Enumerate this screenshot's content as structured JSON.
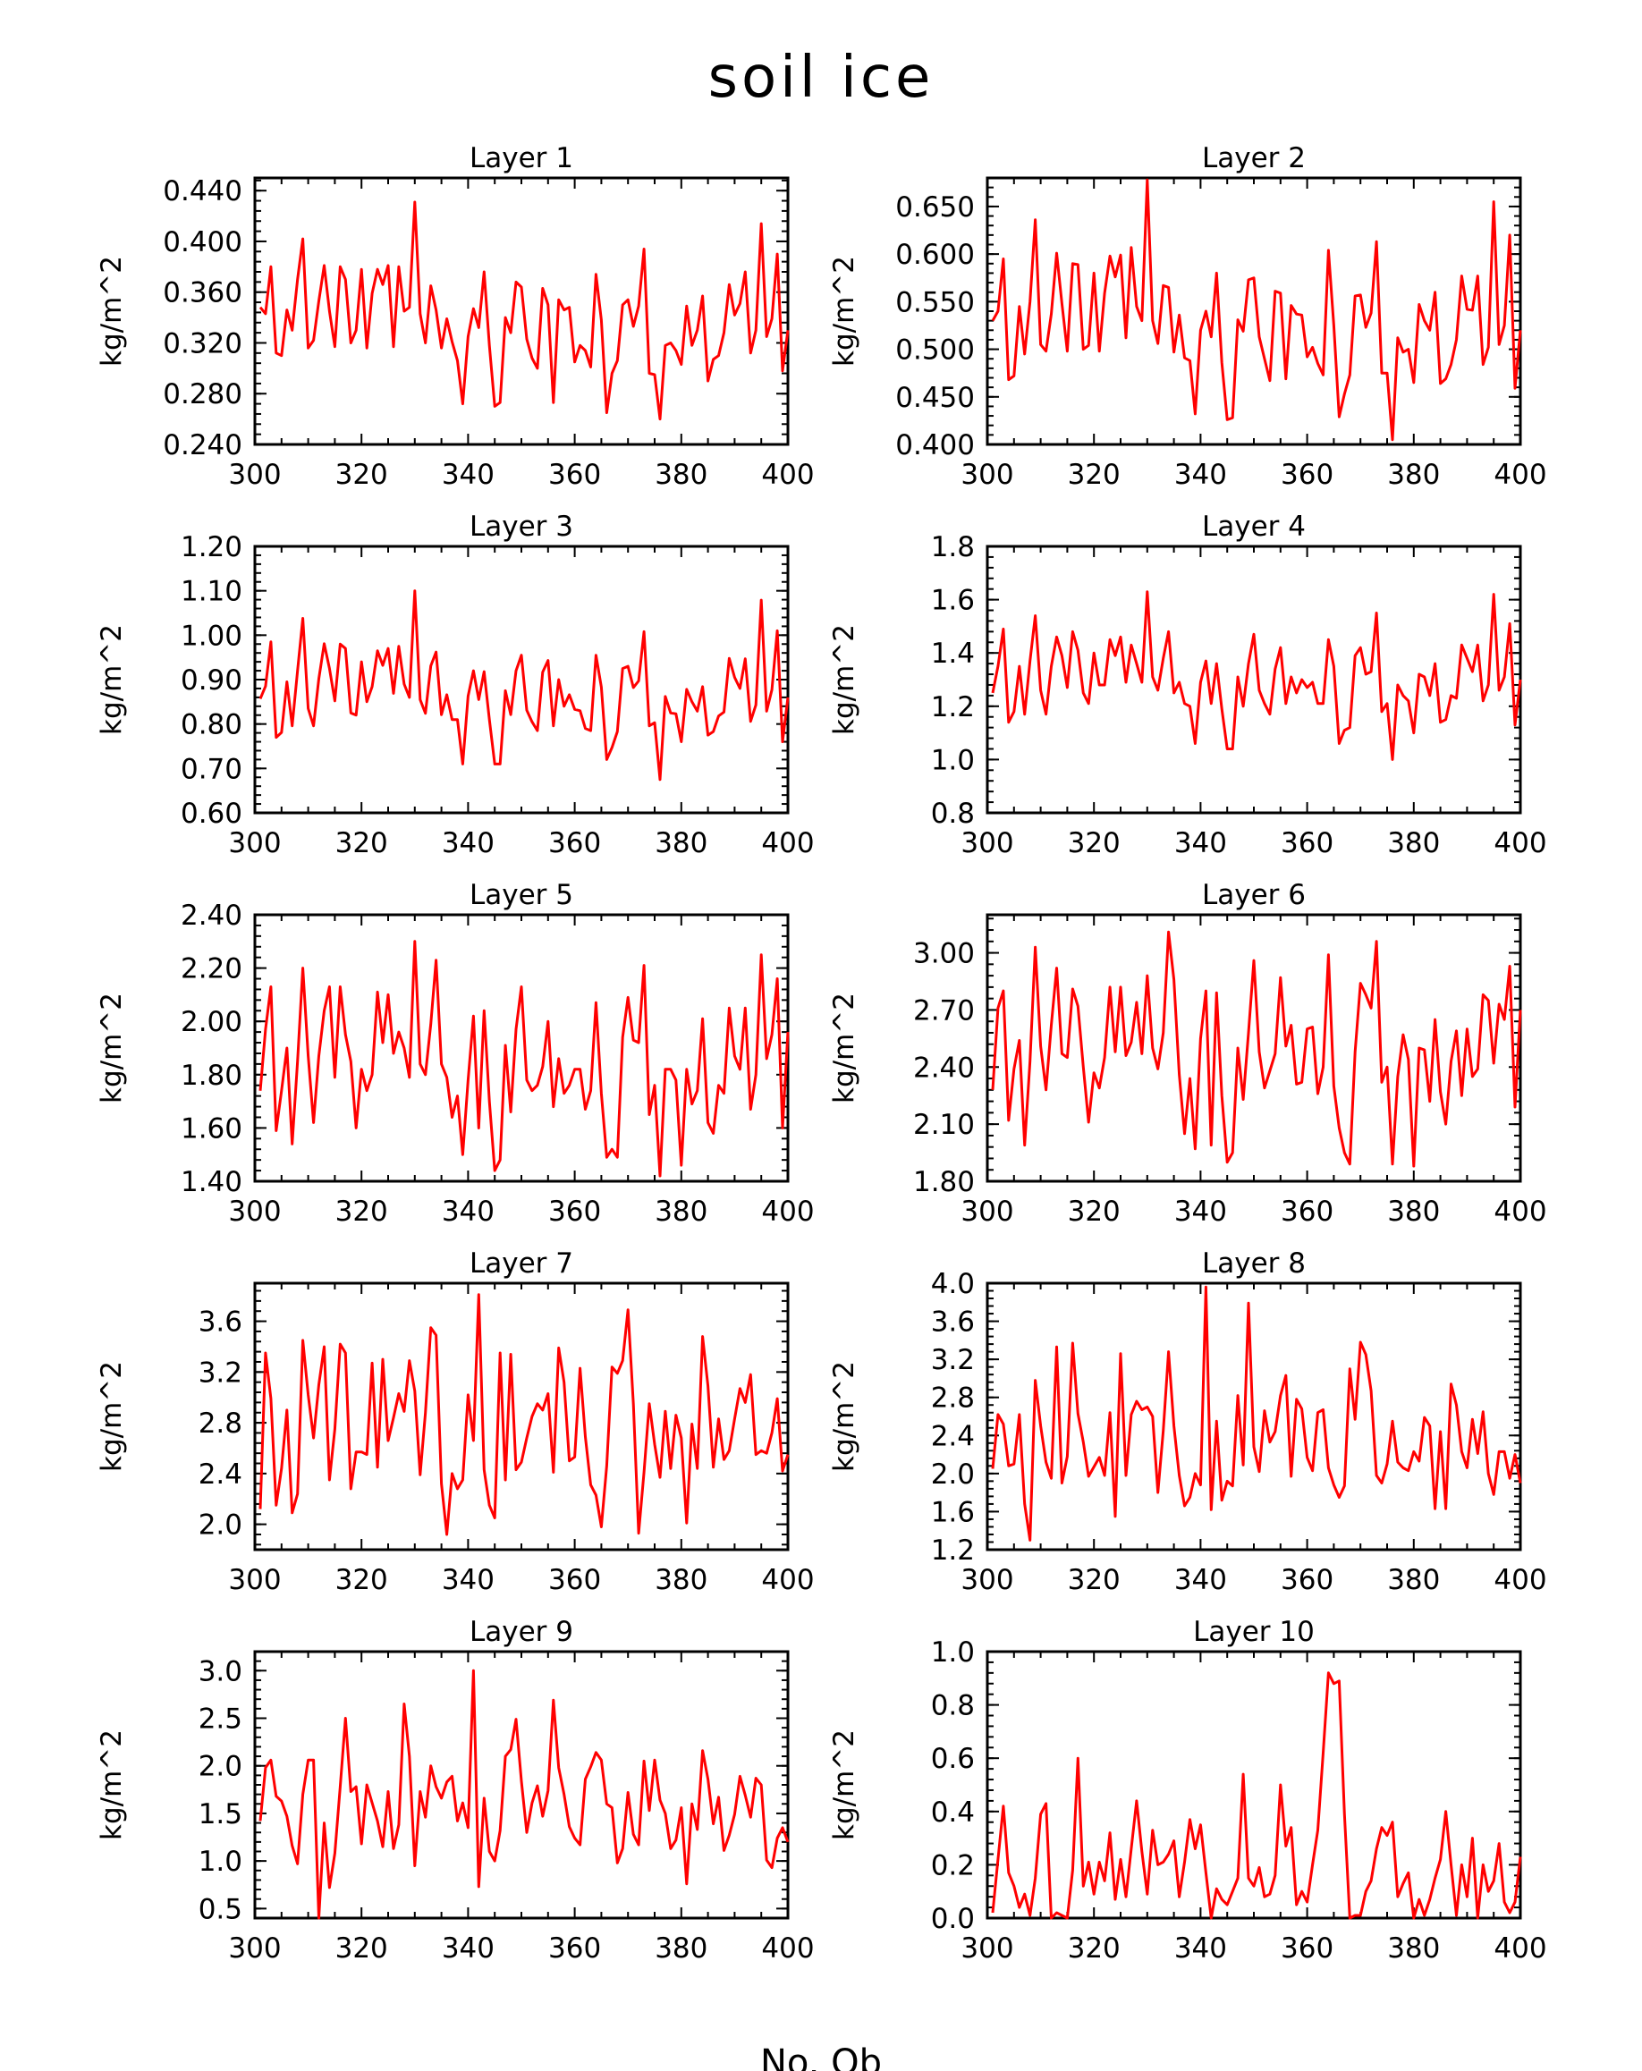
{
  "title": "soil ice",
  "xlabel": "No. Ob",
  "chart_data": [
    {
      "type": "line",
      "title": "Layer 1",
      "ylabel": "kg/m^2",
      "xlim": [
        300,
        400
      ],
      "ylim": [
        0.24,
        0.45
      ],
      "xticks": [
        "300",
        "320",
        "340",
        "360",
        "380",
        "400"
      ],
      "yticks": [
        "0.240",
        "0.280",
        "0.320",
        "0.360",
        "0.400",
        "0.440"
      ],
      "x_start": 301,
      "color": "#ff0000",
      "values": [
        0.348,
        0.343,
        0.38,
        0.312,
        0.31,
        0.346,
        0.33,
        0.37,
        0.402,
        0.316,
        0.322,
        0.353,
        0.381,
        0.345,
        0.317,
        0.38,
        0.37,
        0.32,
        0.33,
        0.378,
        0.316,
        0.359,
        0.378,
        0.366,
        0.381,
        0.317,
        0.38,
        0.345,
        0.348,
        0.431,
        0.343,
        0.32,
        0.365,
        0.346,
        0.316,
        0.339,
        0.321,
        0.306,
        0.272,
        0.325,
        0.347,
        0.332,
        0.376,
        0.318,
        0.27,
        0.273,
        0.34,
        0.328,
        0.368,
        0.364,
        0.323,
        0.308,
        0.3,
        0.363,
        0.35,
        0.273,
        0.354,
        0.346,
        0.348,
        0.305,
        0.318,
        0.314,
        0.301,
        0.374,
        0.338,
        0.265,
        0.296,
        0.306,
        0.35,
        0.354,
        0.333,
        0.349,
        0.394,
        0.296,
        0.295,
        0.26,
        0.318,
        0.32,
        0.314,
        0.303,
        0.349,
        0.318,
        0.33,
        0.357,
        0.29,
        0.307,
        0.31,
        0.328,
        0.366,
        0.342,
        0.351,
        0.376,
        0.312,
        0.33,
        0.414,
        0.325,
        0.339,
        0.39,
        0.298,
        0.33
      ]
    },
    {
      "type": "line",
      "title": "Layer 2",
      "ylabel": "kg/m^2",
      "xlim": [
        300,
        400
      ],
      "ylim": [
        0.4,
        0.68
      ],
      "xticks": [
        "300",
        "320",
        "340",
        "360",
        "380",
        "400"
      ],
      "yticks": [
        "0.400",
        "0.450",
        "0.500",
        "0.550",
        "0.600",
        "0.650"
      ],
      "x_start": 301,
      "color": "#ff0000",
      "values": [
        0.53,
        0.54,
        0.595,
        0.468,
        0.472,
        0.545,
        0.495,
        0.55,
        0.636,
        0.505,
        0.498,
        0.537,
        0.601,
        0.548,
        0.498,
        0.59,
        0.589,
        0.5,
        0.504,
        0.58,
        0.498,
        0.559,
        0.598,
        0.576,
        0.599,
        0.512,
        0.607,
        0.545,
        0.53,
        0.678,
        0.53,
        0.506,
        0.567,
        0.565,
        0.497,
        0.536,
        0.491,
        0.488,
        0.432,
        0.52,
        0.54,
        0.513,
        0.58,
        0.486,
        0.426,
        0.428,
        0.531,
        0.519,
        0.573,
        0.575,
        0.513,
        0.49,
        0.467,
        0.561,
        0.559,
        0.469,
        0.546,
        0.537,
        0.536,
        0.492,
        0.502,
        0.485,
        0.473,
        0.604,
        0.525,
        0.429,
        0.453,
        0.473,
        0.556,
        0.557,
        0.523,
        0.538,
        0.613,
        0.475,
        0.475,
        0.405,
        0.512,
        0.497,
        0.5,
        0.465,
        0.547,
        0.53,
        0.52,
        0.56,
        0.464,
        0.469,
        0.484,
        0.51,
        0.577,
        0.542,
        0.541,
        0.577,
        0.484,
        0.502,
        0.655,
        0.505,
        0.525,
        0.62,
        0.459,
        0.52
      ]
    },
    {
      "type": "line",
      "title": "Layer 3",
      "ylabel": "kg/m^2",
      "xlim": [
        300,
        400
      ],
      "ylim": [
        0.6,
        1.2
      ],
      "xticks": [
        "300",
        "320",
        "340",
        "360",
        "380",
        "400"
      ],
      "yticks": [
        "0.60",
        "0.70",
        "0.80",
        "0.90",
        "1.00",
        "1.10",
        "1.20"
      ],
      "x_start": 301,
      "color": "#ff0000",
      "values": [
        0.857,
        0.885,
        0.985,
        0.77,
        0.781,
        0.895,
        0.796,
        0.92,
        1.038,
        0.835,
        0.796,
        0.902,
        0.981,
        0.925,
        0.852,
        0.98,
        0.97,
        0.825,
        0.82,
        0.94,
        0.85,
        0.884,
        0.965,
        0.932,
        0.97,
        0.869,
        0.975,
        0.89,
        0.86,
        1.1,
        0.855,
        0.824,
        0.931,
        0.962,
        0.821,
        0.866,
        0.81,
        0.81,
        0.71,
        0.863,
        0.92,
        0.855,
        0.918,
        0.81,
        0.71,
        0.71,
        0.875,
        0.821,
        0.92,
        0.955,
        0.831,
        0.805,
        0.785,
        0.917,
        0.943,
        0.796,
        0.9,
        0.84,
        0.866,
        0.833,
        0.83,
        0.79,
        0.785,
        0.955,
        0.883,
        0.72,
        0.747,
        0.783,
        0.925,
        0.93,
        0.882,
        0.897,
        1.008,
        0.796,
        0.803,
        0.675,
        0.862,
        0.825,
        0.823,
        0.76,
        0.878,
        0.85,
        0.829,
        0.884,
        0.775,
        0.783,
        0.818,
        0.827,
        0.948,
        0.905,
        0.88,
        0.947,
        0.806,
        0.843,
        1.079,
        0.829,
        0.877,
        1.01,
        0.76,
        0.86
      ]
    },
    {
      "type": "line",
      "title": "Layer 4",
      "ylabel": "kg/m^2",
      "xlim": [
        300,
        400
      ],
      "ylim": [
        0.8,
        1.8
      ],
      "xticks": [
        "300",
        "320",
        "340",
        "360",
        "380",
        "400"
      ],
      "yticks": [
        "0.8",
        "1.0",
        "1.2",
        "1.4",
        "1.6",
        "1.8"
      ],
      "x_start": 301,
      "color": "#ff0000",
      "values": [
        1.25,
        1.35,
        1.49,
        1.14,
        1.18,
        1.35,
        1.17,
        1.37,
        1.54,
        1.26,
        1.17,
        1.35,
        1.46,
        1.39,
        1.27,
        1.48,
        1.41,
        1.25,
        1.21,
        1.4,
        1.28,
        1.28,
        1.45,
        1.39,
        1.46,
        1.29,
        1.43,
        1.36,
        1.29,
        1.63,
        1.31,
        1.26,
        1.38,
        1.48,
        1.25,
        1.29,
        1.21,
        1.2,
        1.06,
        1.29,
        1.37,
        1.21,
        1.36,
        1.19,
        1.04,
        1.04,
        1.31,
        1.2,
        1.36,
        1.47,
        1.26,
        1.21,
        1.17,
        1.34,
        1.42,
        1.21,
        1.31,
        1.25,
        1.3,
        1.27,
        1.29,
        1.21,
        1.21,
        1.45,
        1.35,
        1.06,
        1.11,
        1.12,
        1.39,
        1.42,
        1.32,
        1.33,
        1.55,
        1.18,
        1.21,
        1.0,
        1.28,
        1.24,
        1.22,
        1.1,
        1.32,
        1.31,
        1.24,
        1.36,
        1.14,
        1.15,
        1.24,
        1.23,
        1.43,
        1.38,
        1.33,
        1.43,
        1.22,
        1.28,
        1.62,
        1.26,
        1.31,
        1.51,
        1.13,
        1.3
      ]
    },
    {
      "type": "line",
      "title": "Layer 5",
      "ylabel": "kg/m^2",
      "xlim": [
        300,
        400
      ],
      "ylim": [
        1.4,
        2.4
      ],
      "xticks": [
        "300",
        "320",
        "340",
        "360",
        "380",
        "400"
      ],
      "yticks": [
        "1.40",
        "1.60",
        "1.80",
        "2.00",
        "2.20",
        "2.40"
      ],
      "x_start": 301,
      "color": "#ff0000",
      "values": [
        1.74,
        1.97,
        2.13,
        1.59,
        1.74,
        1.9,
        1.54,
        1.85,
        2.2,
        1.87,
        1.62,
        1.87,
        2.04,
        2.13,
        1.79,
        2.13,
        1.95,
        1.85,
        1.6,
        1.82,
        1.74,
        1.8,
        2.11,
        1.92,
        2.1,
        1.88,
        1.96,
        1.9,
        1.79,
        2.3,
        1.84,
        1.8,
        1.99,
        2.23,
        1.84,
        1.79,
        1.64,
        1.72,
        1.5,
        1.78,
        2.02,
        1.6,
        2.04,
        1.7,
        1.44,
        1.48,
        1.91,
        1.66,
        1.97,
        2.13,
        1.78,
        1.74,
        1.76,
        1.83,
        2.0,
        1.68,
        1.86,
        1.73,
        1.76,
        1.82,
        1.82,
        1.67,
        1.74,
        2.07,
        1.73,
        1.49,
        1.52,
        1.49,
        1.94,
        2.09,
        1.93,
        1.92,
        2.21,
        1.65,
        1.76,
        1.42,
        1.82,
        1.82,
        1.78,
        1.46,
        1.82,
        1.69,
        1.74,
        2.01,
        1.62,
        1.58,
        1.76,
        1.73,
        2.05,
        1.87,
        1.82,
        2.05,
        1.67,
        1.8,
        2.25,
        1.86,
        1.95,
        2.16,
        1.6,
        1.96
      ]
    },
    {
      "type": "line",
      "title": "Layer 6",
      "ylabel": "kg/m^2",
      "xlim": [
        300,
        400
      ],
      "ylim": [
        1.8,
        3.2
      ],
      "xticks": [
        "300",
        "320",
        "340",
        "360",
        "380",
        "400"
      ],
      "yticks": [
        "1.80",
        "2.10",
        "2.40",
        "2.70",
        "3.00"
      ],
      "x_start": 301,
      "color": "#ff0000",
      "values": [
        2.28,
        2.71,
        2.8,
        2.12,
        2.39,
        2.54,
        1.99,
        2.43,
        3.03,
        2.51,
        2.28,
        2.62,
        2.92,
        2.47,
        2.45,
        2.81,
        2.72,
        2.4,
        2.11,
        2.37,
        2.29,
        2.45,
        2.82,
        2.48,
        2.82,
        2.46,
        2.53,
        2.74,
        2.47,
        2.88,
        2.5,
        2.39,
        2.58,
        3.11,
        2.86,
        2.36,
        2.05,
        2.34,
        1.97,
        2.55,
        2.8,
        1.99,
        2.79,
        2.25,
        1.9,
        1.95,
        2.5,
        2.23,
        2.58,
        2.96,
        2.48,
        2.29,
        2.38,
        2.47,
        2.87,
        2.51,
        2.62,
        2.31,
        2.32,
        2.6,
        2.61,
        2.26,
        2.4,
        2.99,
        2.3,
        2.08,
        1.95,
        1.89,
        2.48,
        2.84,
        2.78,
        2.71,
        3.06,
        2.32,
        2.4,
        1.89,
        2.35,
        2.57,
        2.44,
        1.88,
        2.5,
        2.49,
        2.22,
        2.65,
        2.27,
        2.1,
        2.43,
        2.59,
        2.25,
        2.6,
        2.35,
        2.39,
        2.78,
        2.75,
        2.42,
        2.73,
        2.65,
        2.93,
        2.19,
        2.7
      ]
    },
    {
      "type": "line",
      "title": "Layer 7",
      "ylabel": "kg/m^2",
      "xlim": [
        300,
        400
      ],
      "ylim": [
        1.8,
        3.9
      ],
      "xticks": [
        "300",
        "320",
        "340",
        "360",
        "380",
        "400"
      ],
      "yticks": [
        "2.0",
        "2.4",
        "2.8",
        "3.2",
        "3.6"
      ],
      "x_start": 301,
      "color": "#ff0000",
      "values": [
        2.12,
        3.35,
        2.99,
        2.15,
        2.44,
        2.9,
        2.09,
        2.24,
        3.45,
        3.02,
        2.68,
        3.1,
        3.4,
        2.35,
        2.75,
        3.42,
        3.35,
        2.28,
        2.57,
        2.57,
        2.55,
        3.27,
        2.45,
        3.3,
        2.66,
        2.84,
        3.03,
        2.89,
        3.29,
        3.05,
        2.39,
        2.88,
        3.55,
        3.49,
        2.32,
        1.92,
        2.4,
        2.28,
        2.35,
        3.02,
        2.66,
        3.81,
        2.43,
        2.15,
        2.05,
        3.35,
        2.35,
        3.34,
        2.43,
        2.49,
        2.68,
        2.85,
        2.95,
        2.9,
        3.03,
        2.41,
        3.39,
        3.12,
        2.5,
        2.53,
        3.23,
        2.69,
        2.31,
        2.23,
        1.98,
        2.46,
        3.24,
        3.19,
        3.29,
        3.69,
        2.95,
        1.93,
        2.41,
        2.95,
        2.63,
        2.37,
        2.89,
        2.44,
        2.86,
        2.68,
        2.01,
        2.79,
        2.44,
        3.48,
        3.09,
        2.45,
        2.83,
        2.51,
        2.58,
        2.83,
        3.07,
        2.96,
        3.18,
        2.55,
        2.58,
        2.56,
        2.72,
        2.99,
        2.42,
        2.55
      ]
    },
    {
      "type": "line",
      "title": "Layer 8",
      "ylabel": "kg/m^2",
      "xlim": [
        300,
        400
      ],
      "ylim": [
        1.2,
        4.0
      ],
      "xticks": [
        "300",
        "320",
        "340",
        "360",
        "380",
        "400"
      ],
      "yticks": [
        "1.2",
        "1.6",
        "2.0",
        "2.4",
        "2.8",
        "3.2",
        "3.6",
        "4.0"
      ],
      "x_start": 301,
      "color": "#ff0000",
      "values": [
        2.05,
        2.62,
        2.52,
        2.08,
        2.1,
        2.62,
        1.68,
        1.3,
        2.98,
        2.5,
        2.12,
        1.95,
        3.33,
        1.9,
        2.18,
        3.37,
        2.63,
        2.33,
        1.97,
        2.07,
        2.17,
        1.98,
        2.64,
        1.55,
        3.26,
        1.98,
        2.62,
        2.76,
        2.67,
        2.7,
        2.6,
        1.8,
        2.45,
        3.28,
        2.5,
        1.98,
        1.66,
        1.75,
        2.0,
        1.88,
        3.96,
        1.62,
        2.55,
        1.72,
        1.92,
        1.87,
        2.82,
        2.09,
        3.79,
        2.28,
        2.02,
        2.66,
        2.33,
        2.44,
        2.82,
        3.03,
        1.97,
        2.78,
        2.68,
        2.17,
        2.03,
        2.64,
        2.67,
        2.06,
        1.88,
        1.75,
        1.87,
        3.1,
        2.57,
        3.38,
        3.25,
        2.87,
        1.98,
        1.9,
        2.1,
        2.55,
        2.12,
        2.06,
        2.03,
        2.23,
        2.13,
        2.59,
        2.5,
        1.63,
        2.44,
        1.63,
        2.94,
        2.72,
        2.23,
        2.06,
        2.57,
        2.21,
        2.65,
        2.0,
        1.78,
        2.23,
        2.23,
        1.95,
        2.2,
        1.9
      ]
    },
    {
      "type": "line",
      "title": "Layer 9",
      "ylabel": "kg/m^2",
      "xlim": [
        300,
        400
      ],
      "ylim": [
        0.4,
        3.2
      ],
      "xticks": [
        "300",
        "320",
        "340",
        "360",
        "380",
        "400"
      ],
      "yticks": [
        "0.5",
        "1.0",
        "1.5",
        "2.0",
        "2.5",
        "3.0"
      ],
      "x_start": 301,
      "color": "#ff0000",
      "values": [
        1.42,
        1.98,
        2.06,
        1.68,
        1.63,
        1.47,
        1.16,
        0.97,
        1.7,
        2.06,
        2.06,
        0.4,
        1.4,
        0.72,
        1.08,
        1.78,
        2.5,
        1.73,
        1.78,
        1.18,
        1.8,
        1.61,
        1.42,
        1.15,
        1.73,
        1.13,
        1.38,
        2.65,
        2.1,
        0.95,
        1.73,
        1.46,
        2.0,
        1.78,
        1.66,
        1.83,
        1.89,
        1.42,
        1.61,
        1.35,
        3.0,
        0.73,
        1.66,
        1.1,
        1.0,
        1.32,
        2.1,
        2.17,
        2.49,
        1.84,
        1.3,
        1.61,
        1.79,
        1.47,
        1.74,
        2.69,
        1.98,
        1.7,
        1.36,
        1.24,
        1.17,
        1.86,
        1.99,
        2.14,
        2.06,
        1.6,
        1.56,
        0.98,
        1.13,
        1.72,
        1.28,
        1.17,
        2.05,
        1.53,
        2.06,
        1.64,
        1.5,
        1.13,
        1.22,
        1.56,
        0.76,
        1.6,
        1.33,
        2.16,
        1.86,
        1.39,
        1.67,
        1.11,
        1.27,
        1.49,
        1.89,
        1.69,
        1.46,
        1.87,
        1.8,
        1.01,
        0.93,
        1.24,
        1.35,
        1.2
      ]
    },
    {
      "type": "line",
      "title": "Layer 10",
      "ylabel": "kg/m^2",
      "xlim": [
        300,
        400
      ],
      "ylim": [
        0.0,
        1.0
      ],
      "xticks": [
        "300",
        "320",
        "340",
        "360",
        "380",
        "400"
      ],
      "yticks": [
        "0.0",
        "0.2",
        "0.4",
        "0.6",
        "0.8",
        "1.0"
      ],
      "x_start": 301,
      "color": "#ff0000",
      "values": [
        0.02,
        0.22,
        0.42,
        0.17,
        0.12,
        0.04,
        0.09,
        0.01,
        0.15,
        0.39,
        0.43,
        0.0,
        0.02,
        0.01,
        0.0,
        0.18,
        0.6,
        0.12,
        0.21,
        0.09,
        0.21,
        0.14,
        0.32,
        0.07,
        0.22,
        0.08,
        0.26,
        0.44,
        0.25,
        0.09,
        0.33,
        0.2,
        0.21,
        0.24,
        0.29,
        0.08,
        0.21,
        0.37,
        0.26,
        0.35,
        0.17,
        0.0,
        0.11,
        0.07,
        0.05,
        0.1,
        0.15,
        0.54,
        0.15,
        0.12,
        0.19,
        0.08,
        0.09,
        0.16,
        0.5,
        0.27,
        0.34,
        0.05,
        0.1,
        0.06,
        0.2,
        0.33,
        0.62,
        0.92,
        0.88,
        0.89,
        0.39,
        0.0,
        0.01,
        0.01,
        0.1,
        0.14,
        0.26,
        0.34,
        0.31,
        0.36,
        0.08,
        0.13,
        0.17,
        0.0,
        0.07,
        0.01,
        0.07,
        0.15,
        0.22,
        0.4,
        0.2,
        0.01,
        0.2,
        0.08,
        0.3,
        0.0,
        0.2,
        0.1,
        0.14,
        0.28,
        0.06,
        0.02,
        0.06,
        0.23
      ]
    }
  ]
}
